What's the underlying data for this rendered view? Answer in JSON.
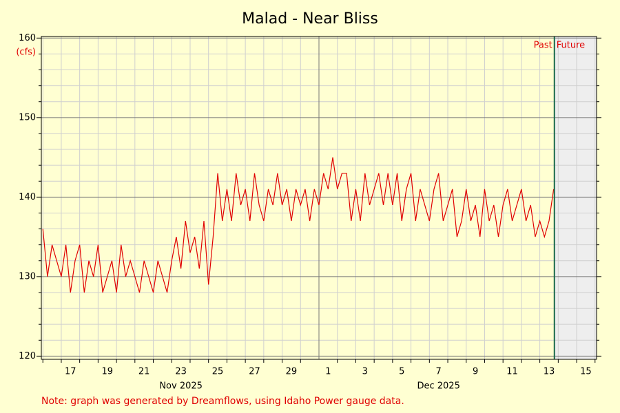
{
  "chart_data": {
    "type": "line",
    "title": "Malad - Near Bliss",
    "y_label": "(cfs)",
    "note": "Note: graph was generated by Dreamflows, using Idaho Power gauge data.",
    "past_label": "Past",
    "future_label": "Future",
    "now": "2025-12-13 19:00",
    "x": [
      "2025-11-16 00:00",
      "2025-11-16 06:00",
      "2025-11-16 12:00",
      "2025-11-16 18:00",
      "2025-11-17 00:00",
      "2025-11-17 06:00",
      "2025-11-17 12:00",
      "2025-11-17 18:00",
      "2025-11-18 00:00",
      "2025-11-18 06:00",
      "2025-11-18 12:00",
      "2025-11-18 18:00",
      "2025-11-19 00:00",
      "2025-11-19 06:00",
      "2025-11-19 12:00",
      "2025-11-19 18:00",
      "2025-11-20 00:00",
      "2025-11-20 06:00",
      "2025-11-20 12:00",
      "2025-11-20 18:00",
      "2025-11-21 00:00",
      "2025-11-21 06:00",
      "2025-11-21 12:00",
      "2025-11-21 18:00",
      "2025-11-22 00:00",
      "2025-11-22 06:00",
      "2025-11-22 12:00",
      "2025-11-22 18:00",
      "2025-11-23 00:00",
      "2025-11-23 06:00",
      "2025-11-23 12:00",
      "2025-11-23 18:00",
      "2025-11-24 00:00",
      "2025-11-24 06:00",
      "2025-11-24 12:00",
      "2025-11-24 18:00",
      "2025-11-25 00:00",
      "2025-11-25 06:00",
      "2025-11-25 12:00",
      "2025-11-25 18:00",
      "2025-11-26 00:00",
      "2025-11-26 06:00",
      "2025-11-26 12:00",
      "2025-11-26 18:00",
      "2025-11-27 00:00",
      "2025-11-27 06:00",
      "2025-11-27 12:00",
      "2025-11-27 18:00",
      "2025-11-28 00:00",
      "2025-11-28 06:00",
      "2025-11-28 12:00",
      "2025-11-28 18:00",
      "2025-11-29 00:00",
      "2025-11-29 06:00",
      "2025-11-29 12:00",
      "2025-11-29 18:00",
      "2025-11-30 00:00",
      "2025-11-30 06:00",
      "2025-11-30 12:00",
      "2025-11-30 18:00",
      "2025-12-01 00:00",
      "2025-12-01 06:00",
      "2025-12-01 12:00",
      "2025-12-01 18:00",
      "2025-12-02 00:00",
      "2025-12-02 06:00",
      "2025-12-02 12:00",
      "2025-12-02 18:00",
      "2025-12-03 00:00",
      "2025-12-03 06:00",
      "2025-12-03 12:00",
      "2025-12-03 18:00",
      "2025-12-04 00:00",
      "2025-12-04 06:00",
      "2025-12-04 12:00",
      "2025-12-04 18:00",
      "2025-12-05 00:00",
      "2025-12-05 06:00",
      "2025-12-05 12:00",
      "2025-12-05 18:00",
      "2025-12-06 00:00",
      "2025-12-06 06:00",
      "2025-12-06 12:00",
      "2025-12-06 18:00",
      "2025-12-07 00:00",
      "2025-12-07 06:00",
      "2025-12-07 12:00",
      "2025-12-07 18:00",
      "2025-12-08 00:00",
      "2025-12-08 06:00",
      "2025-12-08 12:00",
      "2025-12-08 18:00",
      "2025-12-09 00:00",
      "2025-12-09 06:00",
      "2025-12-09 12:00",
      "2025-12-09 18:00",
      "2025-12-10 00:00",
      "2025-12-10 06:00",
      "2025-12-10 12:00",
      "2025-12-10 18:00",
      "2025-12-11 00:00",
      "2025-12-11 06:00",
      "2025-12-11 12:00",
      "2025-12-11 18:00",
      "2025-12-12 00:00",
      "2025-12-12 06:00",
      "2025-12-12 12:00",
      "2025-12-12 18:00",
      "2025-12-13 00:00",
      "2025-12-13 06:00",
      "2025-12-13 12:00",
      "2025-12-13 18:00"
    ],
    "series": [
      {
        "color": "#e00000",
        "values": [
          136,
          130,
          134,
          132,
          130,
          134,
          128,
          132,
          134,
          128,
          132,
          130,
          134,
          128,
          130,
          132,
          128,
          134,
          130,
          132,
          130,
          128,
          132,
          130,
          128,
          132,
          130,
          128,
          132,
          135,
          131,
          137,
          133,
          135,
          131,
          137,
          129,
          135,
          143,
          137,
          141,
          137,
          143,
          139,
          141,
          137,
          143,
          139,
          137,
          141,
          139,
          143,
          139,
          141,
          137,
          141,
          139,
          141,
          137,
          141,
          139,
          143,
          141,
          145,
          141,
          143,
          143,
          137,
          141,
          137,
          143,
          139,
          141,
          143,
          139,
          143,
          139,
          143,
          137,
          141,
          143,
          137,
          141,
          139,
          137,
          141,
          143,
          137,
          139,
          141,
          135,
          137,
          141,
          137,
          139,
          135,
          141,
          137,
          139,
          135,
          139,
          141,
          137,
          139,
          141,
          137,
          139,
          135,
          137,
          135,
          137,
          141
        ]
      }
    ],
    "xlim": [
      "2025-11-15 22:00",
      "2025-12-16 02:00"
    ],
    "xticks": [
      {
        "value": "2025-11-17 12:00",
        "label": "17"
      },
      {
        "value": "2025-11-19 12:00",
        "label": "19"
      },
      {
        "value": "2025-11-21 12:00",
        "label": "21"
      },
      {
        "value": "2025-11-23 12:00",
        "label": "23"
      },
      {
        "value": "2025-11-25 12:00",
        "label": "25"
      },
      {
        "value": "2025-11-27 12:00",
        "label": "27"
      },
      {
        "value": "2025-11-29 12:00",
        "label": "29"
      },
      {
        "value": "2025-12-01 12:00",
        "label": "1"
      },
      {
        "value": "2025-12-03 12:00",
        "label": "3"
      },
      {
        "value": "2025-12-05 12:00",
        "label": "5"
      },
      {
        "value": "2025-12-07 12:00",
        "label": "7"
      },
      {
        "value": "2025-12-09 12:00",
        "label": "9"
      },
      {
        "value": "2025-12-11 12:00",
        "label": "11"
      },
      {
        "value": "2025-12-13 12:00",
        "label": "13"
      },
      {
        "value": "2025-12-15 12:00",
        "label": "15"
      }
    ],
    "month_labels": [
      {
        "value": "2025-11-23 12:00",
        "label": "Nov 2025"
      },
      {
        "value": "2025-12-07 12:00",
        "label": "Dec 2025"
      }
    ],
    "x_major_grid": [
      "2025-12-01 00:00"
    ],
    "x_grid": [
      "2025-11-16 00:00",
      "2025-11-17 00:00",
      "2025-11-18 00:00",
      "2025-11-19 00:00",
      "2025-11-20 00:00",
      "2025-11-21 00:00",
      "2025-11-22 00:00",
      "2025-11-23 00:00",
      "2025-11-24 00:00",
      "2025-11-25 00:00",
      "2025-11-26 00:00",
      "2025-11-27 00:00",
      "2025-11-28 00:00",
      "2025-11-29 00:00",
      "2025-11-30 00:00",
      "2025-12-02 00:00",
      "2025-12-03 00:00",
      "2025-12-04 00:00",
      "2025-12-05 00:00",
      "2025-12-06 00:00",
      "2025-12-07 00:00",
      "2025-12-08 00:00",
      "2025-12-09 00:00",
      "2025-12-10 00:00",
      "2025-12-11 00:00",
      "2025-12-12 00:00",
      "2025-12-13 00:00",
      "2025-12-14 00:00",
      "2025-12-15 00:00",
      "2025-12-16 00:00"
    ],
    "ylim": [
      119.6,
      160.2
    ],
    "yticks": [
      120,
      130,
      140,
      150,
      160
    ],
    "y_minor_ticks": [
      122,
      124,
      126,
      128,
      132,
      134,
      136,
      138,
      142,
      144,
      146,
      148,
      152,
      154,
      156,
      158
    ],
    "grid": true
  }
}
